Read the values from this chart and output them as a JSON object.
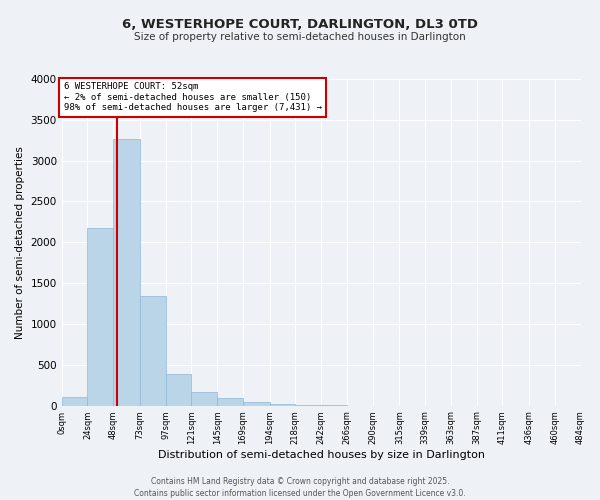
{
  "title": "6, WESTERHOPE COURT, DARLINGTON, DL3 0TD",
  "subtitle": "Size of property relative to semi-detached houses in Darlington",
  "xlabel": "Distribution of semi-detached houses by size in Darlington",
  "ylabel": "Number of semi-detached properties",
  "bar_values": [
    110,
    2175,
    3270,
    1340,
    390,
    165,
    90,
    45,
    20,
    10,
    5
  ],
  "bin_edges": [
    0,
    24,
    48,
    73,
    97,
    121,
    145,
    169,
    194,
    218,
    242,
    266
  ],
  "all_xtick_labels": [
    "0sqm",
    "24sqm",
    "48sqm",
    "73sqm",
    "97sqm",
    "121sqm",
    "145sqm",
    "169sqm",
    "194sqm",
    "218sqm",
    "242sqm",
    "266sqm",
    "290sqm",
    "315sqm",
    "339sqm",
    "363sqm",
    "387sqm",
    "411sqm",
    "436sqm",
    "460sqm",
    "484sqm"
  ],
  "property_line_x": 52,
  "annotation_title": "6 WESTERHOPE COURT: 52sqm",
  "annotation_line1": "← 2% of semi-detached houses are smaller (150)",
  "annotation_line2": "98% of semi-detached houses are larger (7,431) →",
  "bar_color": "#bad4e8",
  "bar_edge_color": "#90b8d8",
  "line_color": "#cc0000",
  "box_edge_color": "#cc0000",
  "background_color": "#eef2f7",
  "grid_color": "#ffffff",
  "ylim": [
    0,
    4000
  ],
  "yticks": [
    0,
    500,
    1000,
    1500,
    2000,
    2500,
    3000,
    3500,
    4000
  ],
  "footer_line1": "Contains HM Land Registry data © Crown copyright and database right 2025.",
  "footer_line2": "Contains public sector information licensed under the Open Government Licence v3.0."
}
